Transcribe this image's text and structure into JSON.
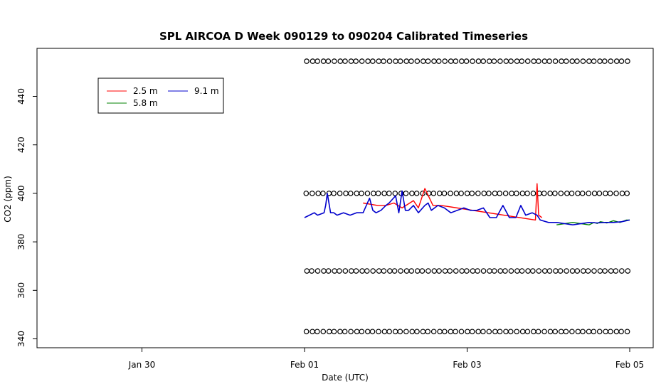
{
  "chart_data": {
    "type": "line",
    "title": "SPL AIRCOA D  Week 090129 to 090204  Calibrated Timeseries",
    "xlabel": "Date (UTC)",
    "ylabel": "CO2 (ppm)",
    "xlim_days": [
      -1.65,
      2.07
    ],
    "ylim": [
      339,
      457
    ],
    "x_ticks": [
      {
        "label": "Jan 30",
        "value": -1
      },
      {
        "label": "Feb 01",
        "value": 0
      },
      {
        "label": "Feb 03",
        "value": 1
      },
      {
        "label": "Feb 05",
        "value": 2
      }
    ],
    "y_ticks": [
      340,
      360,
      380,
      400,
      420,
      440
    ],
    "x_unit_note": "",
    "grid": false,
    "legend_position": "top-left",
    "series": [
      {
        "name": "2.5 m",
        "color": "#ff0000",
        "x": [
          0.36,
          0.45,
          0.5,
          0.55,
          0.6,
          0.67,
          0.7,
          0.74,
          0.79,
          0.84,
          1.42,
          1.43,
          1.44,
          1.46
        ],
        "y": [
          396,
          395,
          395,
          396,
          394,
          397,
          394,
          402,
          395,
          395,
          389,
          404,
          391,
          390
        ]
      },
      {
        "name": "5.8 m",
        "color": "#008000",
        "x": [
          1.55,
          1.65,
          1.75,
          1.78,
          1.8,
          1.82,
          1.86,
          1.9,
          1.94,
          1.98,
          2.0
        ],
        "y": [
          387,
          388,
          387,
          388,
          387.6,
          388.3,
          387.8,
          388.7,
          388,
          389,
          389
        ]
      },
      {
        "name": "9.1 m",
        "color": "#0000cc",
        "x": [
          0,
          0.03,
          0.06,
          0.08,
          0.12,
          0.13,
          0.14,
          0.16,
          0.18,
          0.2,
          0.24,
          0.28,
          0.32,
          0.36,
          0.4,
          0.42,
          0.44,
          0.47,
          0.5,
          0.52,
          0.56,
          0.58,
          0.6,
          0.62,
          0.64,
          0.67,
          0.7,
          0.74,
          0.76,
          0.78,
          0.82,
          0.86,
          0.9,
          0.94,
          0.98,
          1.02,
          1.06,
          1.1,
          1.14,
          1.18,
          1.22,
          1.26,
          1.3,
          1.33,
          1.36,
          1.4,
          1.43,
          1.45,
          1.5,
          1.55,
          1.6,
          1.65,
          1.7,
          1.75,
          1.8,
          1.85,
          1.9,
          1.95,
          2.0
        ],
        "y": [
          390,
          391,
          392,
          391,
          392,
          395,
          400,
          392,
          392,
          391,
          392,
          391,
          392,
          392,
          398,
          393,
          392,
          393,
          395,
          396,
          399,
          392,
          401,
          393,
          393,
          395,
          392,
          395,
          396,
          393,
          395,
          394,
          392,
          393,
          394,
          393,
          393,
          394,
          390,
          390,
          395,
          390,
          390,
          395,
          391,
          392,
          391,
          389,
          388,
          388,
          387.5,
          387,
          387.5,
          388,
          387.8,
          388,
          388,
          388.3,
          389
        ]
      }
    ],
    "markers": {
      "symbol": "o",
      "rows_y": [
        454.5,
        400,
        368,
        343
      ],
      "x_start": 0,
      "x_end": 2,
      "x_step": 0.034
    }
  }
}
